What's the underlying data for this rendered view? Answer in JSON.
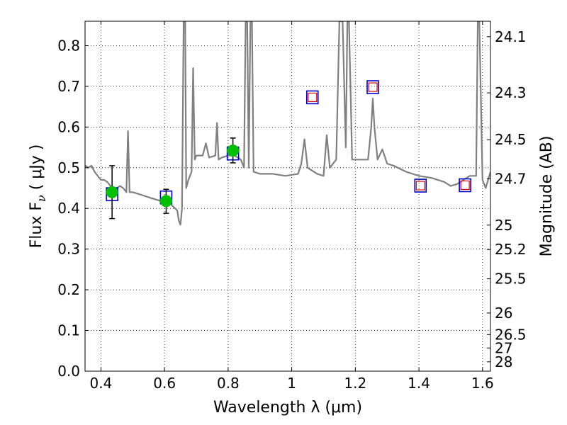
{
  "chart_data": {
    "type": "scatter",
    "xlabel": "Wavelength  λ (μm)",
    "ylabel_left": "Flux  F",
    "ylabel_left_sub": "ν",
    "ylabel_left_unit": "  ( μJy )",
    "ylabel_right": "Magnitude (AB)",
    "xlim": [
      0.35,
      1.625
    ],
    "ylim": [
      0.0,
      0.86
    ],
    "grid": true,
    "x_ticks": [
      0.4,
      0.6,
      0.8,
      1.0,
      1.2,
      1.4,
      1.6
    ],
    "x_tick_labels": [
      "0.4",
      "0.6",
      "0.8",
      "1",
      "1.2",
      "1.4",
      "1.6"
    ],
    "y_ticks": [
      0.0,
      0.1,
      0.2,
      0.3,
      0.4,
      0.5,
      0.6,
      0.7,
      0.8
    ],
    "y_tick_labels": [
      "0.0",
      "0.1",
      "0.2",
      "0.3",
      "0.4",
      "0.5",
      "0.6",
      "0.7",
      "0.8"
    ],
    "right_ticks": [
      {
        "label": "24.1",
        "flux": 0.822
      },
      {
        "label": "24.3",
        "flux": 0.684
      },
      {
        "label": "24.5",
        "flux": 0.569
      },
      {
        "label": "24.7",
        "flux": 0.473
      },
      {
        "label": "25",
        "flux": 0.359
      },
      {
        "label": "25.2",
        "flux": 0.299
      },
      {
        "label": "25.5",
        "flux": 0.227
      },
      {
        "label": "26",
        "flux": 0.143
      },
      {
        "label": "26.5",
        "flux": 0.09
      },
      {
        "label": "27",
        "flux": 0.057
      },
      {
        "label": "28",
        "flux": 0.023
      }
    ],
    "colors": {
      "sed": "#808080",
      "observed": "#00c000",
      "model_box": "#0000cc",
      "predicted_box": "#dd0000",
      "errorbar": "#000000"
    },
    "series": [
      {
        "kind": "model_sed_line",
        "points": [
          [
            0.35,
            0.505
          ],
          [
            0.36,
            0.5
          ],
          [
            0.37,
            0.505
          ],
          [
            0.38,
            0.49
          ],
          [
            0.39,
            0.48
          ],
          [
            0.4,
            0.47
          ],
          [
            0.41,
            0.47
          ],
          [
            0.42,
            0.465
          ],
          [
            0.43,
            0.455
          ],
          [
            0.44,
            0.45
          ],
          [
            0.45,
            0.45
          ],
          [
            0.46,
            0.455
          ],
          [
            0.47,
            0.45
          ],
          [
            0.48,
            0.44
          ],
          [
            0.485,
            0.59
          ],
          [
            0.49,
            0.44
          ],
          [
            0.5,
            0.44
          ],
          [
            0.52,
            0.435
          ],
          [
            0.54,
            0.43
          ],
          [
            0.56,
            0.425
          ],
          [
            0.58,
            0.42
          ],
          [
            0.6,
            0.415
          ],
          [
            0.62,
            0.41
          ],
          [
            0.64,
            0.395
          ],
          [
            0.645,
            0.37
          ],
          [
            0.65,
            0.36
          ],
          [
            0.655,
            0.4
          ],
          [
            0.66,
            0.86
          ],
          [
            0.665,
            0.86
          ],
          [
            0.668,
            0.45
          ],
          [
            0.675,
            0.47
          ],
          [
            0.685,
            0.49
          ],
          [
            0.69,
            0.745
          ],
          [
            0.695,
            0.52
          ],
          [
            0.7,
            0.53
          ],
          [
            0.72,
            0.53
          ],
          [
            0.73,
            0.56
          ],
          [
            0.74,
            0.525
          ],
          [
            0.76,
            0.53
          ],
          [
            0.765,
            0.61
          ],
          [
            0.77,
            0.52
          ],
          [
            0.78,
            0.525
          ],
          [
            0.8,
            0.53
          ],
          [
            0.82,
            0.53
          ],
          [
            0.84,
            0.52
          ],
          [
            0.85,
            0.5
          ],
          [
            0.855,
            0.86
          ],
          [
            0.86,
            0.86
          ],
          [
            0.865,
            0.5
          ],
          [
            0.87,
            0.86
          ],
          [
            0.875,
            0.86
          ],
          [
            0.88,
            0.49
          ],
          [
            0.9,
            0.485
          ],
          [
            0.94,
            0.485
          ],
          [
            0.98,
            0.48
          ],
          [
            1.02,
            0.485
          ],
          [
            1.03,
            0.51
          ],
          [
            1.04,
            0.57
          ],
          [
            1.05,
            0.5
          ],
          [
            1.08,
            0.485
          ],
          [
            1.1,
            0.48
          ],
          [
            1.11,
            0.58
          ],
          [
            1.12,
            0.5
          ],
          [
            1.14,
            0.52
          ],
          [
            1.15,
            0.86
          ],
          [
            1.16,
            0.86
          ],
          [
            1.17,
            0.55
          ],
          [
            1.175,
            0.86
          ],
          [
            1.18,
            0.86
          ],
          [
            1.19,
            0.52
          ],
          [
            1.22,
            0.52
          ],
          [
            1.24,
            0.52
          ],
          [
            1.25,
            0.6
          ],
          [
            1.255,
            0.67
          ],
          [
            1.26,
            0.6
          ],
          [
            1.27,
            0.52
          ],
          [
            1.285,
            0.545
          ],
          [
            1.3,
            0.51
          ],
          [
            1.32,
            0.505
          ],
          [
            1.36,
            0.49
          ],
          [
            1.4,
            0.48
          ],
          [
            1.44,
            0.475
          ],
          [
            1.48,
            0.465
          ],
          [
            1.5,
            0.455
          ],
          [
            1.52,
            0.46
          ],
          [
            1.54,
            0.47
          ],
          [
            1.56,
            0.48
          ],
          [
            1.58,
            0.48
          ],
          [
            1.585,
            0.86
          ],
          [
            1.59,
            0.86
          ],
          [
            1.6,
            0.47
          ],
          [
            1.61,
            0.45
          ],
          [
            1.625,
            0.49
          ]
        ]
      },
      {
        "kind": "observed_points",
        "points": [
          {
            "x": 0.435,
            "y": 0.44,
            "err_lo": 0.375,
            "err_hi": 0.505
          },
          {
            "x": 0.605,
            "y": 0.418,
            "err_lo": 0.388,
            "err_hi": 0.447
          },
          {
            "x": 0.815,
            "y": 0.542,
            "err_lo": 0.512,
            "err_hi": 0.573
          }
        ]
      },
      {
        "kind": "model_band_boxes",
        "points": [
          {
            "x": 0.435,
            "y": 0.435
          },
          {
            "x": 0.605,
            "y": 0.427
          },
          {
            "x": 0.815,
            "y": 0.535
          },
          {
            "x": 1.065,
            "y": 0.673
          },
          {
            "x": 1.255,
            "y": 0.698
          },
          {
            "x": 1.405,
            "y": 0.456
          },
          {
            "x": 1.545,
            "y": 0.457
          }
        ]
      },
      {
        "kind": "predicted_inner_boxes",
        "points": [
          {
            "x": 1.065,
            "y": 0.673
          },
          {
            "x": 1.255,
            "y": 0.698
          },
          {
            "x": 1.405,
            "y": 0.456
          },
          {
            "x": 1.545,
            "y": 0.457
          }
        ]
      }
    ]
  }
}
